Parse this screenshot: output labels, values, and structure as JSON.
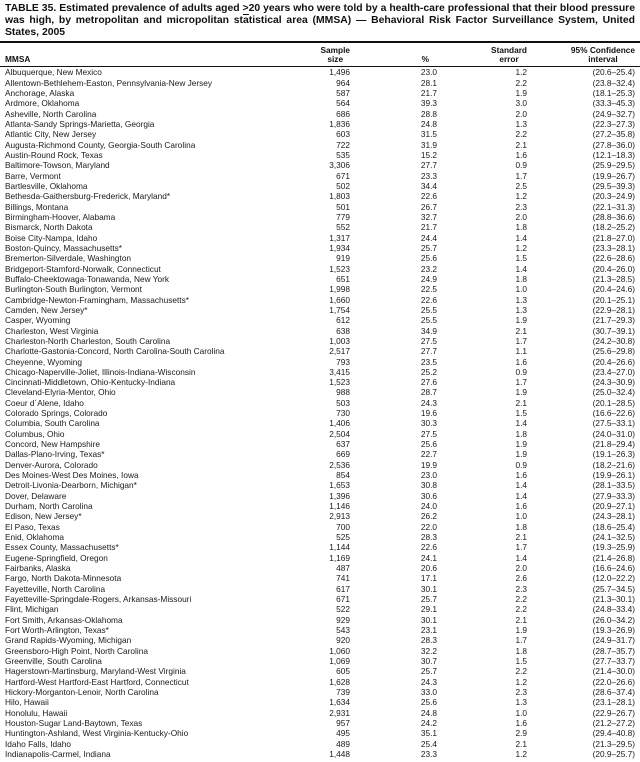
{
  "title": {
    "part1": "TABLE 35. Estimated prevalence of adults aged ",
    "geq": ">",
    "part2": "20 years who were told by a health-care professional that their blood pressure was high, by metropolitan and micropolitan statistical area (MMSA) — Behavioral Risk Factor Surveillance System, United States, 2005"
  },
  "table": {
    "header": {
      "mmsa": "MMSA",
      "sample_line1": "Sample",
      "sample_line2": "size",
      "percent": "%",
      "se_line1": "Standard",
      "se_line2": "error",
      "ci_line1": "95% Confidence",
      "ci_line2": "interval"
    },
    "col_keys": [
      "mmsa",
      "sample-size",
      "percent",
      "standard-error",
      "confidence-interval"
    ],
    "rows": [
      [
        "Albuquerque, New Mexico",
        "1,496",
        "23.0",
        "1.2",
        "(20.6–25.4)"
      ],
      [
        "Allentown-Bethlehem-Easton, Pennsylvania-New Jersey",
        "964",
        "28.1",
        "2.2",
        "(23.8–32.4)"
      ],
      [
        "Anchorage, Alaska",
        "587",
        "21.7",
        "1.9",
        "(18.1–25.3)"
      ],
      [
        "Ardmore, Oklahoma",
        "564",
        "39.3",
        "3.0",
        "(33.3–45.3)"
      ],
      [
        "Asheville, North Carolina",
        "686",
        "28.8",
        "2.0",
        "(24.9–32.7)"
      ],
      [
        "Atlanta-Sandy Springs-Marietta, Georgia",
        "1,836",
        "24.8",
        "1.3",
        "(22.3–27.3)"
      ],
      [
        "Atlantic City, New Jersey",
        "603",
        "31.5",
        "2.2",
        "(27.2–35.8)"
      ],
      [
        "Augusta-Richmond County, Georgia-South Carolina",
        "722",
        "31.9",
        "2.1",
        "(27.8–36.0)"
      ],
      [
        "Austin-Round Rock, Texas",
        "535",
        "15.2",
        "1.6",
        "(12.1–18.3)"
      ],
      [
        "Baltimore-Towson, Maryland",
        "3,306",
        "27.7",
        "0.9",
        "(25.9–29.5)"
      ],
      [
        "Barre, Vermont",
        "671",
        "23.3",
        "1.7",
        "(19.9–26.7)"
      ],
      [
        "Bartlesville, Oklahoma",
        "502",
        "34.4",
        "2.5",
        "(29.5–39.3)"
      ],
      [
        "Bethesda-Gaithersburg-Frederick, Maryland*",
        "1,803",
        "22.6",
        "1.2",
        "(20.3–24.9)"
      ],
      [
        "Billings, Montana",
        "501",
        "26.7",
        "2.3",
        "(22.1–31.3)"
      ],
      [
        "Birmingham-Hoover, Alabama",
        "779",
        "32.7",
        "2.0",
        "(28.8–36.6)"
      ],
      [
        "Bismarck, North Dakota",
        "552",
        "21.7",
        "1.8",
        "(18.2–25.2)"
      ],
      [
        "Boise City-Nampa, Idaho",
        "1,317",
        "24.4",
        "1.4",
        "(21.8–27.0)"
      ],
      [
        "Boston-Quincy, Massachusetts*",
        "1,934",
        "25.7",
        "1.2",
        "(23.3–28.1)"
      ],
      [
        "Bremerton-Silverdale, Washington",
        "919",
        "25.6",
        "1.5",
        "(22.6–28.6)"
      ],
      [
        "Bridgeport-Stamford-Norwalk, Connecticut",
        "1,523",
        "23.2",
        "1.4",
        "(20.4–26.0)"
      ],
      [
        "Buffalo-Cheektowaga-Tonawanda, New York",
        "651",
        "24.9",
        "1.8",
        "(21.3–28.5)"
      ],
      [
        "Burlington-South Burlington, Vermont",
        "1,998",
        "22.5",
        "1.0",
        "(20.4–24.6)"
      ],
      [
        "Cambridge-Newton-Framingham, Massachusetts*",
        "1,660",
        "22.6",
        "1.3",
        "(20.1–25.1)"
      ],
      [
        "Camden, New Jersey*",
        "1,754",
        "25.5",
        "1.3",
        "(22.9–28.1)"
      ],
      [
        "Casper, Wyoming",
        "612",
        "25.5",
        "1.9",
        "(21.7–29.3)"
      ],
      [
        "Charleston, West Virginia",
        "638",
        "34.9",
        "2.1",
        "(30.7–39.1)"
      ],
      [
        "Charleston-North Charleston, South Carolina",
        "1,003",
        "27.5",
        "1.7",
        "(24.2–30.8)"
      ],
      [
        "Charlotte-Gastonia-Concord, North Carolina-South Carolina",
        "2,517",
        "27.7",
        "1.1",
        "(25.6–29.8)"
      ],
      [
        "Cheyenne, Wyoming",
        "793",
        "23.5",
        "1.6",
        "(20.4–26.6)"
      ],
      [
        "Chicago-Naperville-Joliet, Illinois-Indiana-Wisconsin",
        "3,415",
        "25.2",
        "0.9",
        "(23.4–27.0)"
      ],
      [
        "Cincinnati-Middletown, Ohio-Kentucky-Indiana",
        "1,523",
        "27.6",
        "1.7",
        "(24.3–30.9)"
      ],
      [
        "Cleveland-Elyria-Mentor, Ohio",
        "988",
        "28.7",
        "1.9",
        "(25.0–32.4)"
      ],
      [
        "Coeur d´Alene, Idaho",
        "503",
        "24.3",
        "2.1",
        "(20.1–28.5)"
      ],
      [
        "Colorado Springs, Colorado",
        "730",
        "19.6",
        "1.5",
        "(16.6–22.6)"
      ],
      [
        "Columbia, South Carolina",
        "1,406",
        "30.3",
        "1.4",
        "(27.5–33.1)"
      ],
      [
        "Columbus, Ohio",
        "2,504",
        "27.5",
        "1.8",
        "(24.0–31.0)"
      ],
      [
        "Concord, New Hampshire",
        "637",
        "25.6",
        "1.9",
        "(21.8–29.4)"
      ],
      [
        "Dallas-Plano-Irving, Texas*",
        "669",
        "22.7",
        "1.9",
        "(19.1–26.3)"
      ],
      [
        "Denver-Aurora, Colorado",
        "2,536",
        "19.9",
        "0.9",
        "(18.2–21.6)"
      ],
      [
        "Des Moines-West Des Moines, Iowa",
        "854",
        "23.0",
        "1.6",
        "(19.9–26.1)"
      ],
      [
        "Detroit-Livonia-Dearborn, Michigan*",
        "1,653",
        "30.8",
        "1.4",
        "(28.1–33.5)"
      ],
      [
        "Dover, Delaware",
        "1,396",
        "30.6",
        "1.4",
        "(27.9–33.3)"
      ],
      [
        "Durham, North Carolina",
        "1,146",
        "24.0",
        "1.6",
        "(20.9–27.1)"
      ],
      [
        "Edison, New Jersey*",
        "2,913",
        "26.2",
        "1.0",
        "(24.3–28.1)"
      ],
      [
        "El Paso, Texas",
        "700",
        "22.0",
        "1.8",
        "(18.6–25.4)"
      ],
      [
        "Enid, Oklahoma",
        "525",
        "28.3",
        "2.1",
        "(24.1–32.5)"
      ],
      [
        "Essex County, Massachusetts*",
        "1,144",
        "22.6",
        "1.7",
        "(19.3–25.9)"
      ],
      [
        "Eugene-Springfield, Oregon",
        "1,169",
        "24.1",
        "1.4",
        "(21.4–26.8)"
      ],
      [
        "Fairbanks, Alaska",
        "487",
        "20.6",
        "2.0",
        "(16.6–24.6)"
      ],
      [
        "Fargo, North Dakota-Minnesota",
        "741",
        "17.1",
        "2.6",
        "(12.0–22.2)"
      ],
      [
        "Fayetteville, North Carolina",
        "617",
        "30.1",
        "2.3",
        "(25.7–34.5)"
      ],
      [
        "Fayetteville-Springdale-Rogers, Arkansas-Missouri",
        "671",
        "25.7",
        "2.2",
        "(21.3–30.1)"
      ],
      [
        "Flint, Michigan",
        "522",
        "29.1",
        "2.2",
        "(24.8–33.4)"
      ],
      [
        "Fort Smith, Arkansas-Oklahoma",
        "929",
        "30.1",
        "2.1",
        "(26.0–34.2)"
      ],
      [
        "Fort Worth-Arlington, Texas*",
        "543",
        "23.1",
        "1.9",
        "(19.3–26.9)"
      ],
      [
        "Grand Rapids-Wyoming, Michigan",
        "920",
        "28.3",
        "1.7",
        "(24.9–31.7)"
      ],
      [
        "Greensboro-High Point, North Carolina",
        "1,060",
        "32.2",
        "1.8",
        "(28.7–35.7)"
      ],
      [
        "Greenville, South Carolina",
        "1,069",
        "30.7",
        "1.5",
        "(27.7–33.7)"
      ],
      [
        "Hagerstown-Martinsburg, Maryland-West Virginia",
        "605",
        "25.7",
        "2.2",
        "(21.4–30.0)"
      ],
      [
        "Hartford-West Hartford-East Hartford, Connecticut",
        "1,628",
        "24.3",
        "1.2",
        "(22.0–26.6)"
      ],
      [
        "Hickory-Morganton-Lenoir, North Carolina",
        "739",
        "33.0",
        "2.3",
        "(28.6–37.4)"
      ],
      [
        "Hilo, Hawaii",
        "1,634",
        "25.6",
        "1.3",
        "(23.1–28.1)"
      ],
      [
        "Honolulu, Hawaii",
        "2,931",
        "24.8",
        "1.0",
        "(22.9–26.7)"
      ],
      [
        "Houston-Sugar Land-Baytown, Texas",
        "957",
        "24.2",
        "1.6",
        "(21.2–27.2)"
      ],
      [
        "Huntington-Ashland, West Virginia-Kentucky-Ohio",
        "495",
        "35.1",
        "2.9",
        "(29.4–40.8)"
      ],
      [
        "Idaho Falls, Idaho",
        "489",
        "25.4",
        "2.1",
        "(21.3–29.5)"
      ],
      [
        "Indianapolis-Carmel, Indiana",
        "1,448",
        "23.3",
        "1.2",
        "(20.9–25.7)"
      ]
    ]
  }
}
